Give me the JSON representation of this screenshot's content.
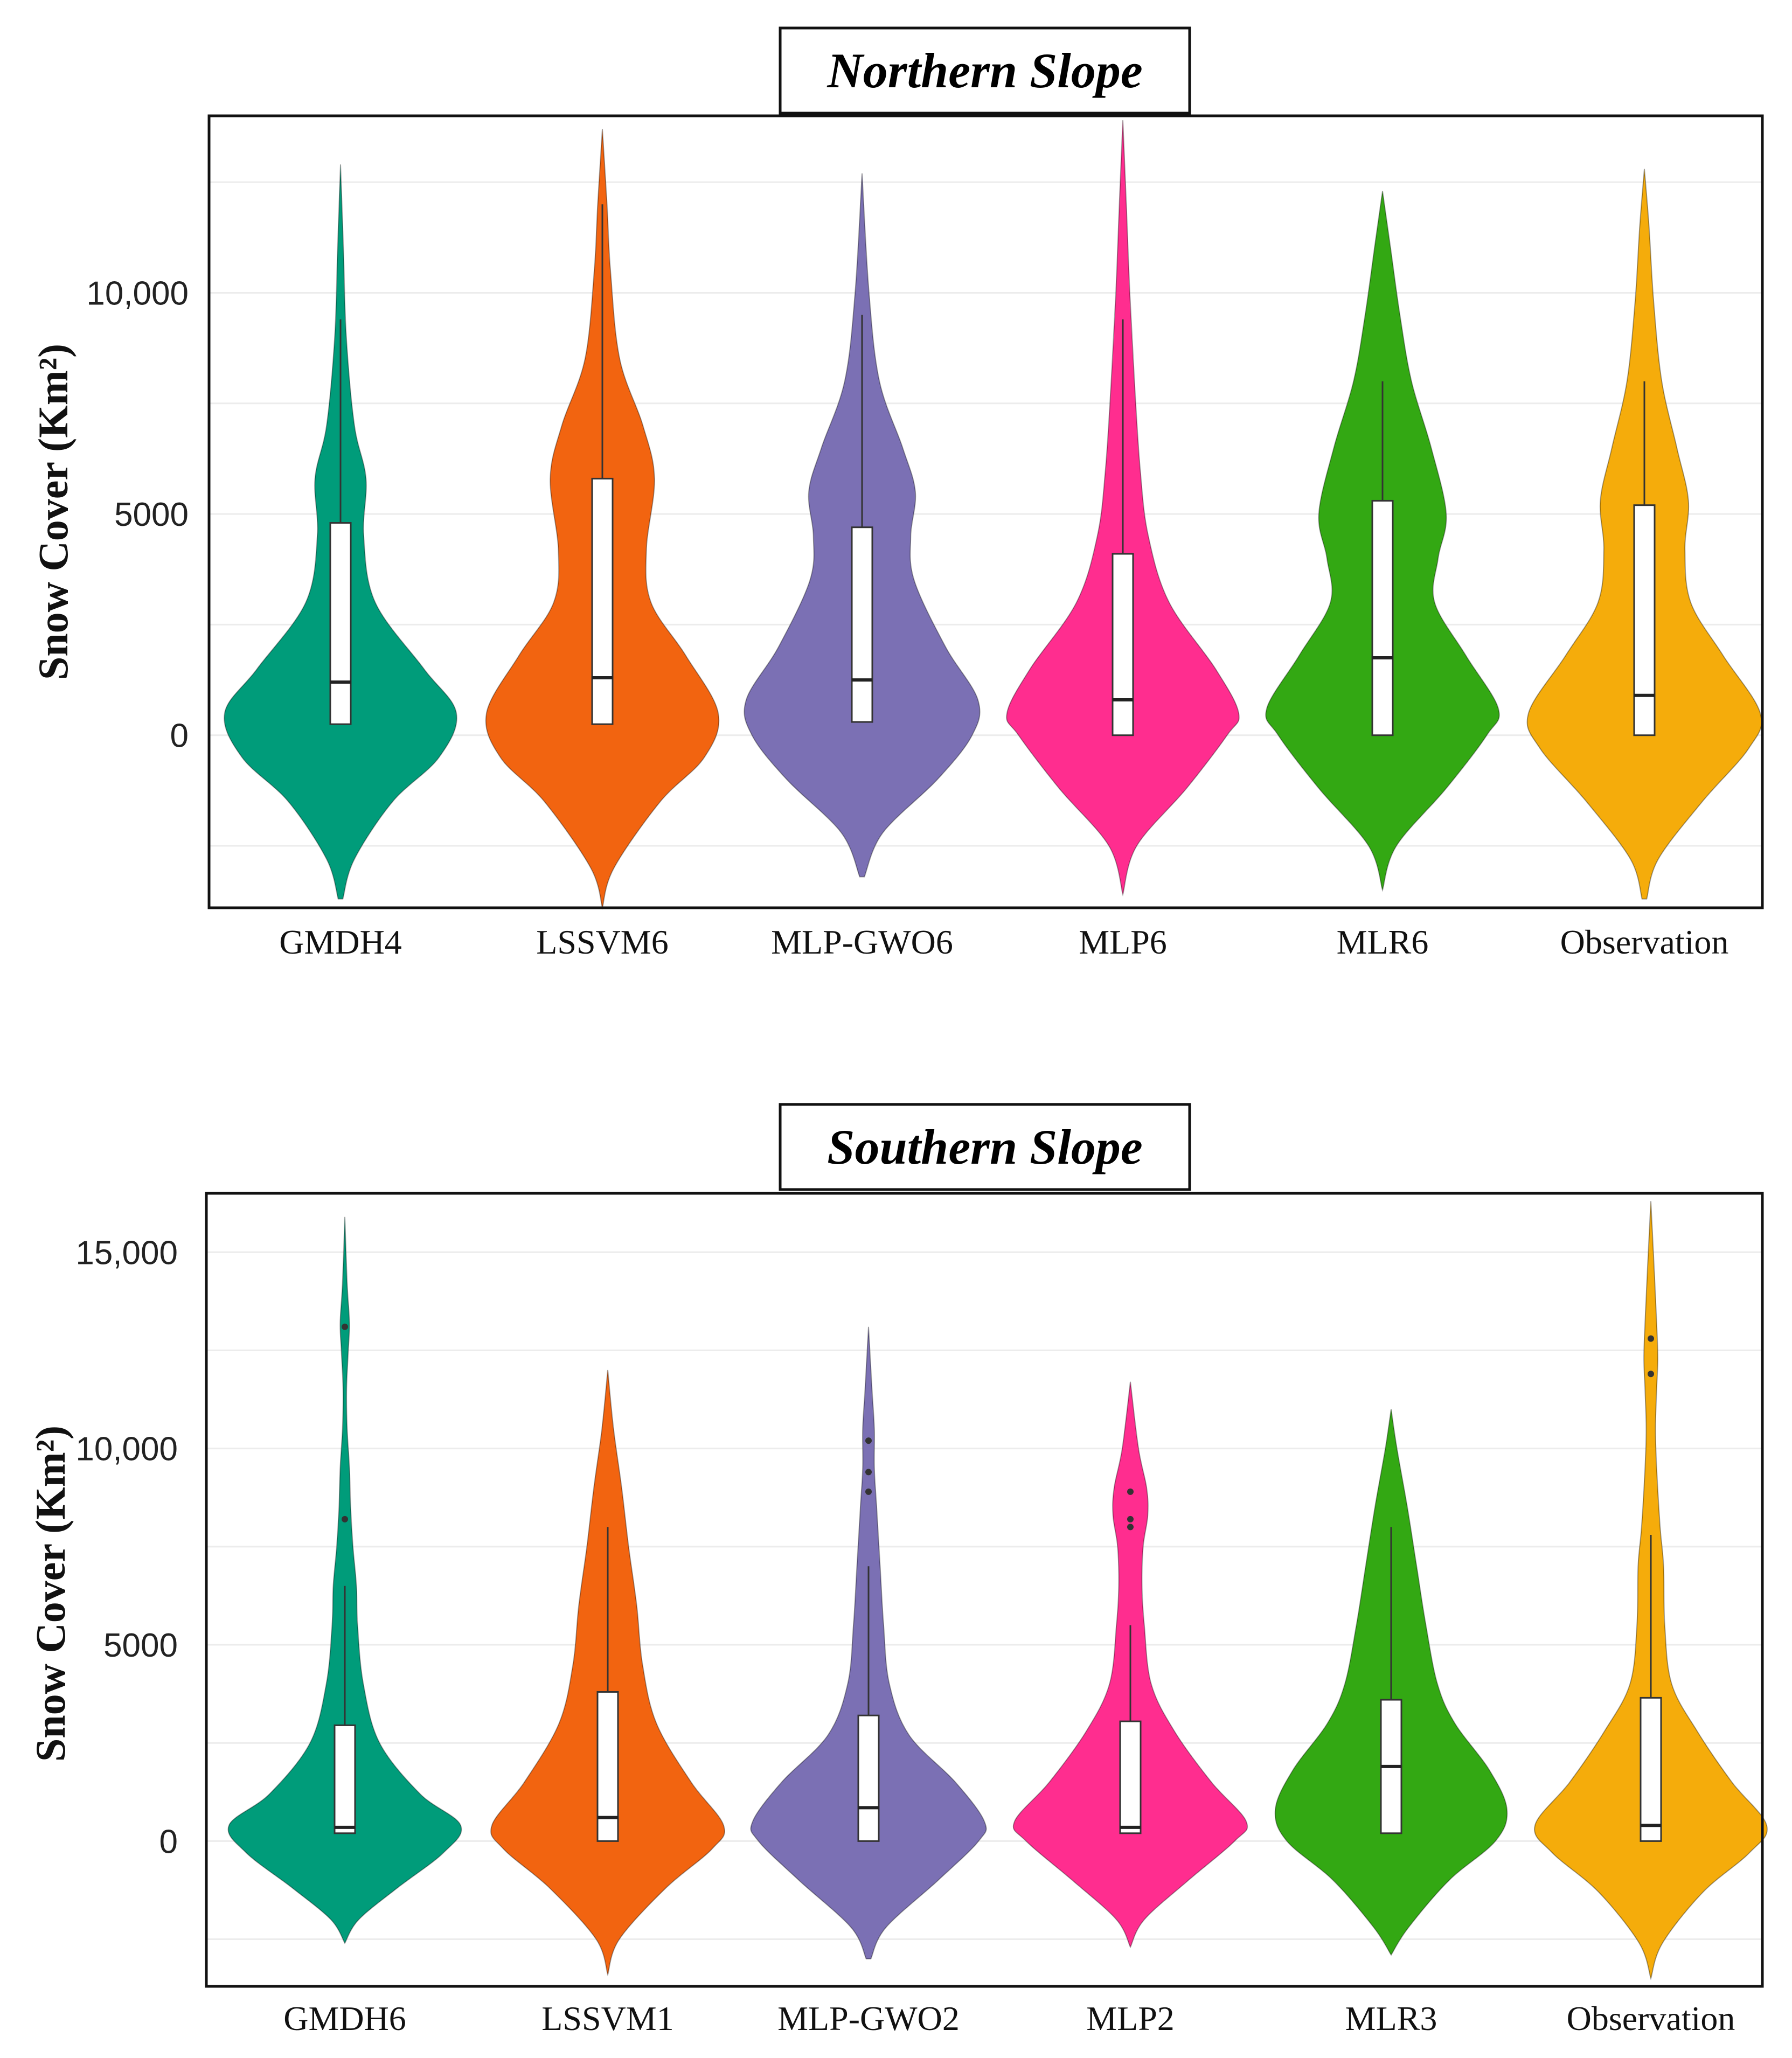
{
  "chart_data": [
    {
      "type": "violin",
      "title": "Northern Slope",
      "ylabel": "Snow Cover (Km²)",
      "xlabel": "",
      "ylim": [
        -3900,
        14000
      ],
      "yticks": [
        0,
        5000,
        10000
      ],
      "ytick_labels": [
        "0",
        "5000",
        "10,000"
      ],
      "categories": [
        "GMDH4",
        "LSSVM6",
        "MLP-GWO6",
        "MLP6",
        "MLR6",
        "Observation"
      ],
      "colors": [
        "#009c7a",
        "#f26410",
        "#7b70b4",
        "#ff2d8f",
        "#33a813",
        "#f5ac0b"
      ],
      "series": [
        {
          "name": "GMDH4",
          "min": 250,
          "q1": 250,
          "median": 1200,
          "q3": 4800,
          "max": 9400,
          "vmin": -3700,
          "vmax": 12900,
          "density": [
            [
              -3700,
              0.02
            ],
            [
              -2800,
              0.12
            ],
            [
              -1500,
              0.45
            ],
            [
              -500,
              0.85
            ],
            [
              500,
              1.0
            ],
            [
              1500,
              0.72
            ],
            [
              3000,
              0.3
            ],
            [
              4500,
              0.2
            ],
            [
              5800,
              0.22
            ],
            [
              7000,
              0.12
            ],
            [
              9000,
              0.05
            ],
            [
              11000,
              0.025
            ],
            [
              12900,
              0.0
            ]
          ]
        },
        {
          "name": "LSSVM6",
          "min": 250,
          "q1": 250,
          "median": 1300,
          "q3": 5800,
          "max": 12000,
          "vmin": -3900,
          "vmax": 13700,
          "density": [
            [
              -3900,
              0.0
            ],
            [
              -3000,
              0.1
            ],
            [
              -1500,
              0.5
            ],
            [
              -500,
              0.88
            ],
            [
              500,
              1.0
            ],
            [
              1800,
              0.72
            ],
            [
              3000,
              0.42
            ],
            [
              4200,
              0.38
            ],
            [
              5800,
              0.45
            ],
            [
              7000,
              0.35
            ],
            [
              8500,
              0.15
            ],
            [
              10500,
              0.07
            ],
            [
              12000,
              0.04
            ],
            [
              13700,
              0.0
            ]
          ]
        },
        {
          "name": "MLP-GWO6",
          "min": 300,
          "q1": 300,
          "median": 1250,
          "q3": 4700,
          "max": 9500,
          "vmin": -3200,
          "vmax": 12700,
          "density": [
            [
              -3200,
              0.02
            ],
            [
              -2200,
              0.18
            ],
            [
              -1000,
              0.65
            ],
            [
              0,
              0.95
            ],
            [
              800,
              1.0
            ],
            [
              2000,
              0.72
            ],
            [
              3500,
              0.45
            ],
            [
              4500,
              0.42
            ],
            [
              5500,
              0.46
            ],
            [
              6500,
              0.35
            ],
            [
              8000,
              0.15
            ],
            [
              10000,
              0.06
            ],
            [
              12700,
              0.0
            ]
          ]
        },
        {
          "name": "MLP6",
          "min": 0,
          "q1": 0,
          "median": 800,
          "q3": 4100,
          "max": 9400,
          "vmin": -3600,
          "vmax": 13900,
          "density": [
            [
              -3600,
              0.0
            ],
            [
              -2500,
              0.12
            ],
            [
              -1200,
              0.55
            ],
            [
              0,
              0.9
            ],
            [
              500,
              1.0
            ],
            [
              1500,
              0.8
            ],
            [
              3000,
              0.4
            ],
            [
              4500,
              0.22
            ],
            [
              6000,
              0.15
            ],
            [
              8000,
              0.1
            ],
            [
              10000,
              0.06
            ],
            [
              12000,
              0.03
            ],
            [
              13900,
              0.0
            ]
          ]
        },
        {
          "name": "MLR6",
          "min": 0,
          "q1": 0,
          "median": 1750,
          "q3": 5300,
          "max": 8000,
          "vmin": -3500,
          "vmax": 12300,
          "density": [
            [
              -3500,
              0.0
            ],
            [
              -2500,
              0.12
            ],
            [
              -1200,
              0.55
            ],
            [
              0,
              0.9
            ],
            [
              600,
              1.0
            ],
            [
              1800,
              0.72
            ],
            [
              3000,
              0.45
            ],
            [
              4000,
              0.48
            ],
            [
              5000,
              0.55
            ],
            [
              6500,
              0.42
            ],
            [
              8000,
              0.25
            ],
            [
              9500,
              0.15
            ],
            [
              11000,
              0.07
            ],
            [
              12300,
              0.0
            ]
          ]
        },
        {
          "name": "Observation",
          "min": 0,
          "q1": 0,
          "median": 900,
          "q3": 5200,
          "max": 8000,
          "vmin": -3700,
          "vmax": 12800,
          "density": [
            [
              -3700,
              0.02
            ],
            [
              -2800,
              0.12
            ],
            [
              -1500,
              0.5
            ],
            [
              -300,
              0.9
            ],
            [
              500,
              1.0
            ],
            [
              1800,
              0.68
            ],
            [
              3000,
              0.4
            ],
            [
              4200,
              0.35
            ],
            [
              5300,
              0.38
            ],
            [
              6500,
              0.28
            ],
            [
              8000,
              0.15
            ],
            [
              9800,
              0.08
            ],
            [
              11500,
              0.04
            ],
            [
              12800,
              0.0
            ]
          ]
        }
      ]
    },
    {
      "type": "violin",
      "title": "Southern Slope",
      "ylabel": "Snow Cover (Km²)",
      "xlabel": "",
      "ylim": [
        -3700,
        16500
      ],
      "yticks": [
        0,
        5000,
        10000,
        15000
      ],
      "ytick_labels": [
        "0",
        "5000",
        "10,000",
        "15,000"
      ],
      "categories": [
        "GMDH6",
        "LSSVM1",
        "MLP-GWO2",
        "MLP2",
        "MLR3",
        "Observation"
      ],
      "colors": [
        "#009c7a",
        "#f26410",
        "#7b70b4",
        "#ff2d8f",
        "#33a813",
        "#f5ac0b"
      ],
      "series": [
        {
          "name": "GMDH6",
          "min": 200,
          "q1": 200,
          "median": 350,
          "q3": 2950,
          "max": 6500,
          "vmin": -2600,
          "vmax": 15900,
          "outliers": [
            13100,
            8200
          ],
          "density": [
            [
              -2600,
              0.0
            ],
            [
              -2000,
              0.12
            ],
            [
              -1200,
              0.45
            ],
            [
              -300,
              0.85
            ],
            [
              400,
              1.0
            ],
            [
              1200,
              0.65
            ],
            [
              2500,
              0.3
            ],
            [
              4000,
              0.16
            ],
            [
              5500,
              0.11
            ],
            [
              6500,
              0.1
            ],
            [
              7500,
              0.07
            ],
            [
              8500,
              0.05
            ],
            [
              9500,
              0.04
            ],
            [
              10500,
              0.02
            ],
            [
              11500,
              0.015
            ],
            [
              12500,
              0.03
            ],
            [
              13200,
              0.04
            ],
            [
              14200,
              0.02
            ],
            [
              15900,
              0.0
            ]
          ]
        },
        {
          "name": "LSSVM1",
          "min": 0,
          "q1": 0,
          "median": 600,
          "q3": 3800,
          "max": 8000,
          "vmin": -3400,
          "vmax": 12000,
          "density": [
            [
              -3400,
              0.0
            ],
            [
              -2500,
              0.1
            ],
            [
              -1200,
              0.5
            ],
            [
              -200,
              0.9
            ],
            [
              400,
              1.0
            ],
            [
              1500,
              0.72
            ],
            [
              3000,
              0.42
            ],
            [
              4500,
              0.3
            ],
            [
              6000,
              0.25
            ],
            [
              7500,
              0.18
            ],
            [
              9000,
              0.12
            ],
            [
              10500,
              0.05
            ],
            [
              12000,
              0.0
            ]
          ]
        },
        {
          "name": "MLP-GWO2",
          "min": 0,
          "q1": 0,
          "median": 850,
          "q3": 3200,
          "max": 7000,
          "vmin": -3000,
          "vmax": 13100,
          "outliers": [
            10200,
            9400,
            8900
          ],
          "density": [
            [
              -3000,
              0.02
            ],
            [
              -2200,
              0.15
            ],
            [
              -1000,
              0.6
            ],
            [
              0,
              0.95
            ],
            [
              500,
              1.0
            ],
            [
              1500,
              0.75
            ],
            [
              2700,
              0.35
            ],
            [
              4000,
              0.18
            ],
            [
              5500,
              0.13
            ],
            [
              7000,
              0.1
            ],
            [
              8500,
              0.07
            ],
            [
              9500,
              0.05
            ],
            [
              10500,
              0.05
            ],
            [
              11500,
              0.03
            ],
            [
              13100,
              0.0
            ]
          ]
        },
        {
          "name": "MLP2",
          "min": 200,
          "q1": 200,
          "median": 350,
          "q3": 3050,
          "max": 5500,
          "vmin": -2700,
          "vmax": 11700,
          "outliers": [
            8900,
            8200,
            8000
          ],
          "density": [
            [
              -2700,
              0.0
            ],
            [
              -2000,
              0.12
            ],
            [
              -1000,
              0.5
            ],
            [
              0,
              0.9
            ],
            [
              500,
              1.0
            ],
            [
              1500,
              0.7
            ],
            [
              2800,
              0.38
            ],
            [
              4000,
              0.18
            ],
            [
              5500,
              0.12
            ],
            [
              6500,
              0.1
            ],
            [
              7500,
              0.11
            ],
            [
              8300,
              0.15
            ],
            [
              9000,
              0.14
            ],
            [
              10000,
              0.07
            ],
            [
              11700,
              0.0
            ]
          ]
        },
        {
          "name": "MLR3",
          "min": 200,
          "q1": 200,
          "median": 1900,
          "q3": 3600,
          "max": 8000,
          "vmin": -2900,
          "vmax": 11000,
          "density": [
            [
              -2900,
              0.0
            ],
            [
              -2200,
              0.15
            ],
            [
              -1000,
              0.5
            ],
            [
              0,
              0.9
            ],
            [
              800,
              1.0
            ],
            [
              1800,
              0.85
            ],
            [
              3000,
              0.55
            ],
            [
              4000,
              0.4
            ],
            [
              5500,
              0.3
            ],
            [
              7000,
              0.22
            ],
            [
              8500,
              0.14
            ],
            [
              10000,
              0.05
            ],
            [
              11000,
              0.0
            ]
          ]
        },
        {
          "name": "Observation",
          "min": 0,
          "q1": 0,
          "median": 400,
          "q3": 3650,
          "max": 7800,
          "vmin": -3500,
          "vmax": 16300,
          "outliers": [
            12800,
            11900
          ],
          "density": [
            [
              -3500,
              0.0
            ],
            [
              -2600,
              0.1
            ],
            [
              -1300,
              0.45
            ],
            [
              -300,
              0.85
            ],
            [
              400,
              1.0
            ],
            [
              1500,
              0.7
            ],
            [
              2800,
              0.4
            ],
            [
              4000,
              0.18
            ],
            [
              5500,
              0.12
            ],
            [
              7000,
              0.11
            ],
            [
              8000,
              0.08
            ],
            [
              9500,
              0.05
            ],
            [
              10500,
              0.04
            ],
            [
              11500,
              0.05
            ],
            [
              12300,
              0.06
            ],
            [
              13200,
              0.05
            ],
            [
              14500,
              0.03
            ],
            [
              16300,
              0.0
            ]
          ]
        }
      ]
    }
  ]
}
